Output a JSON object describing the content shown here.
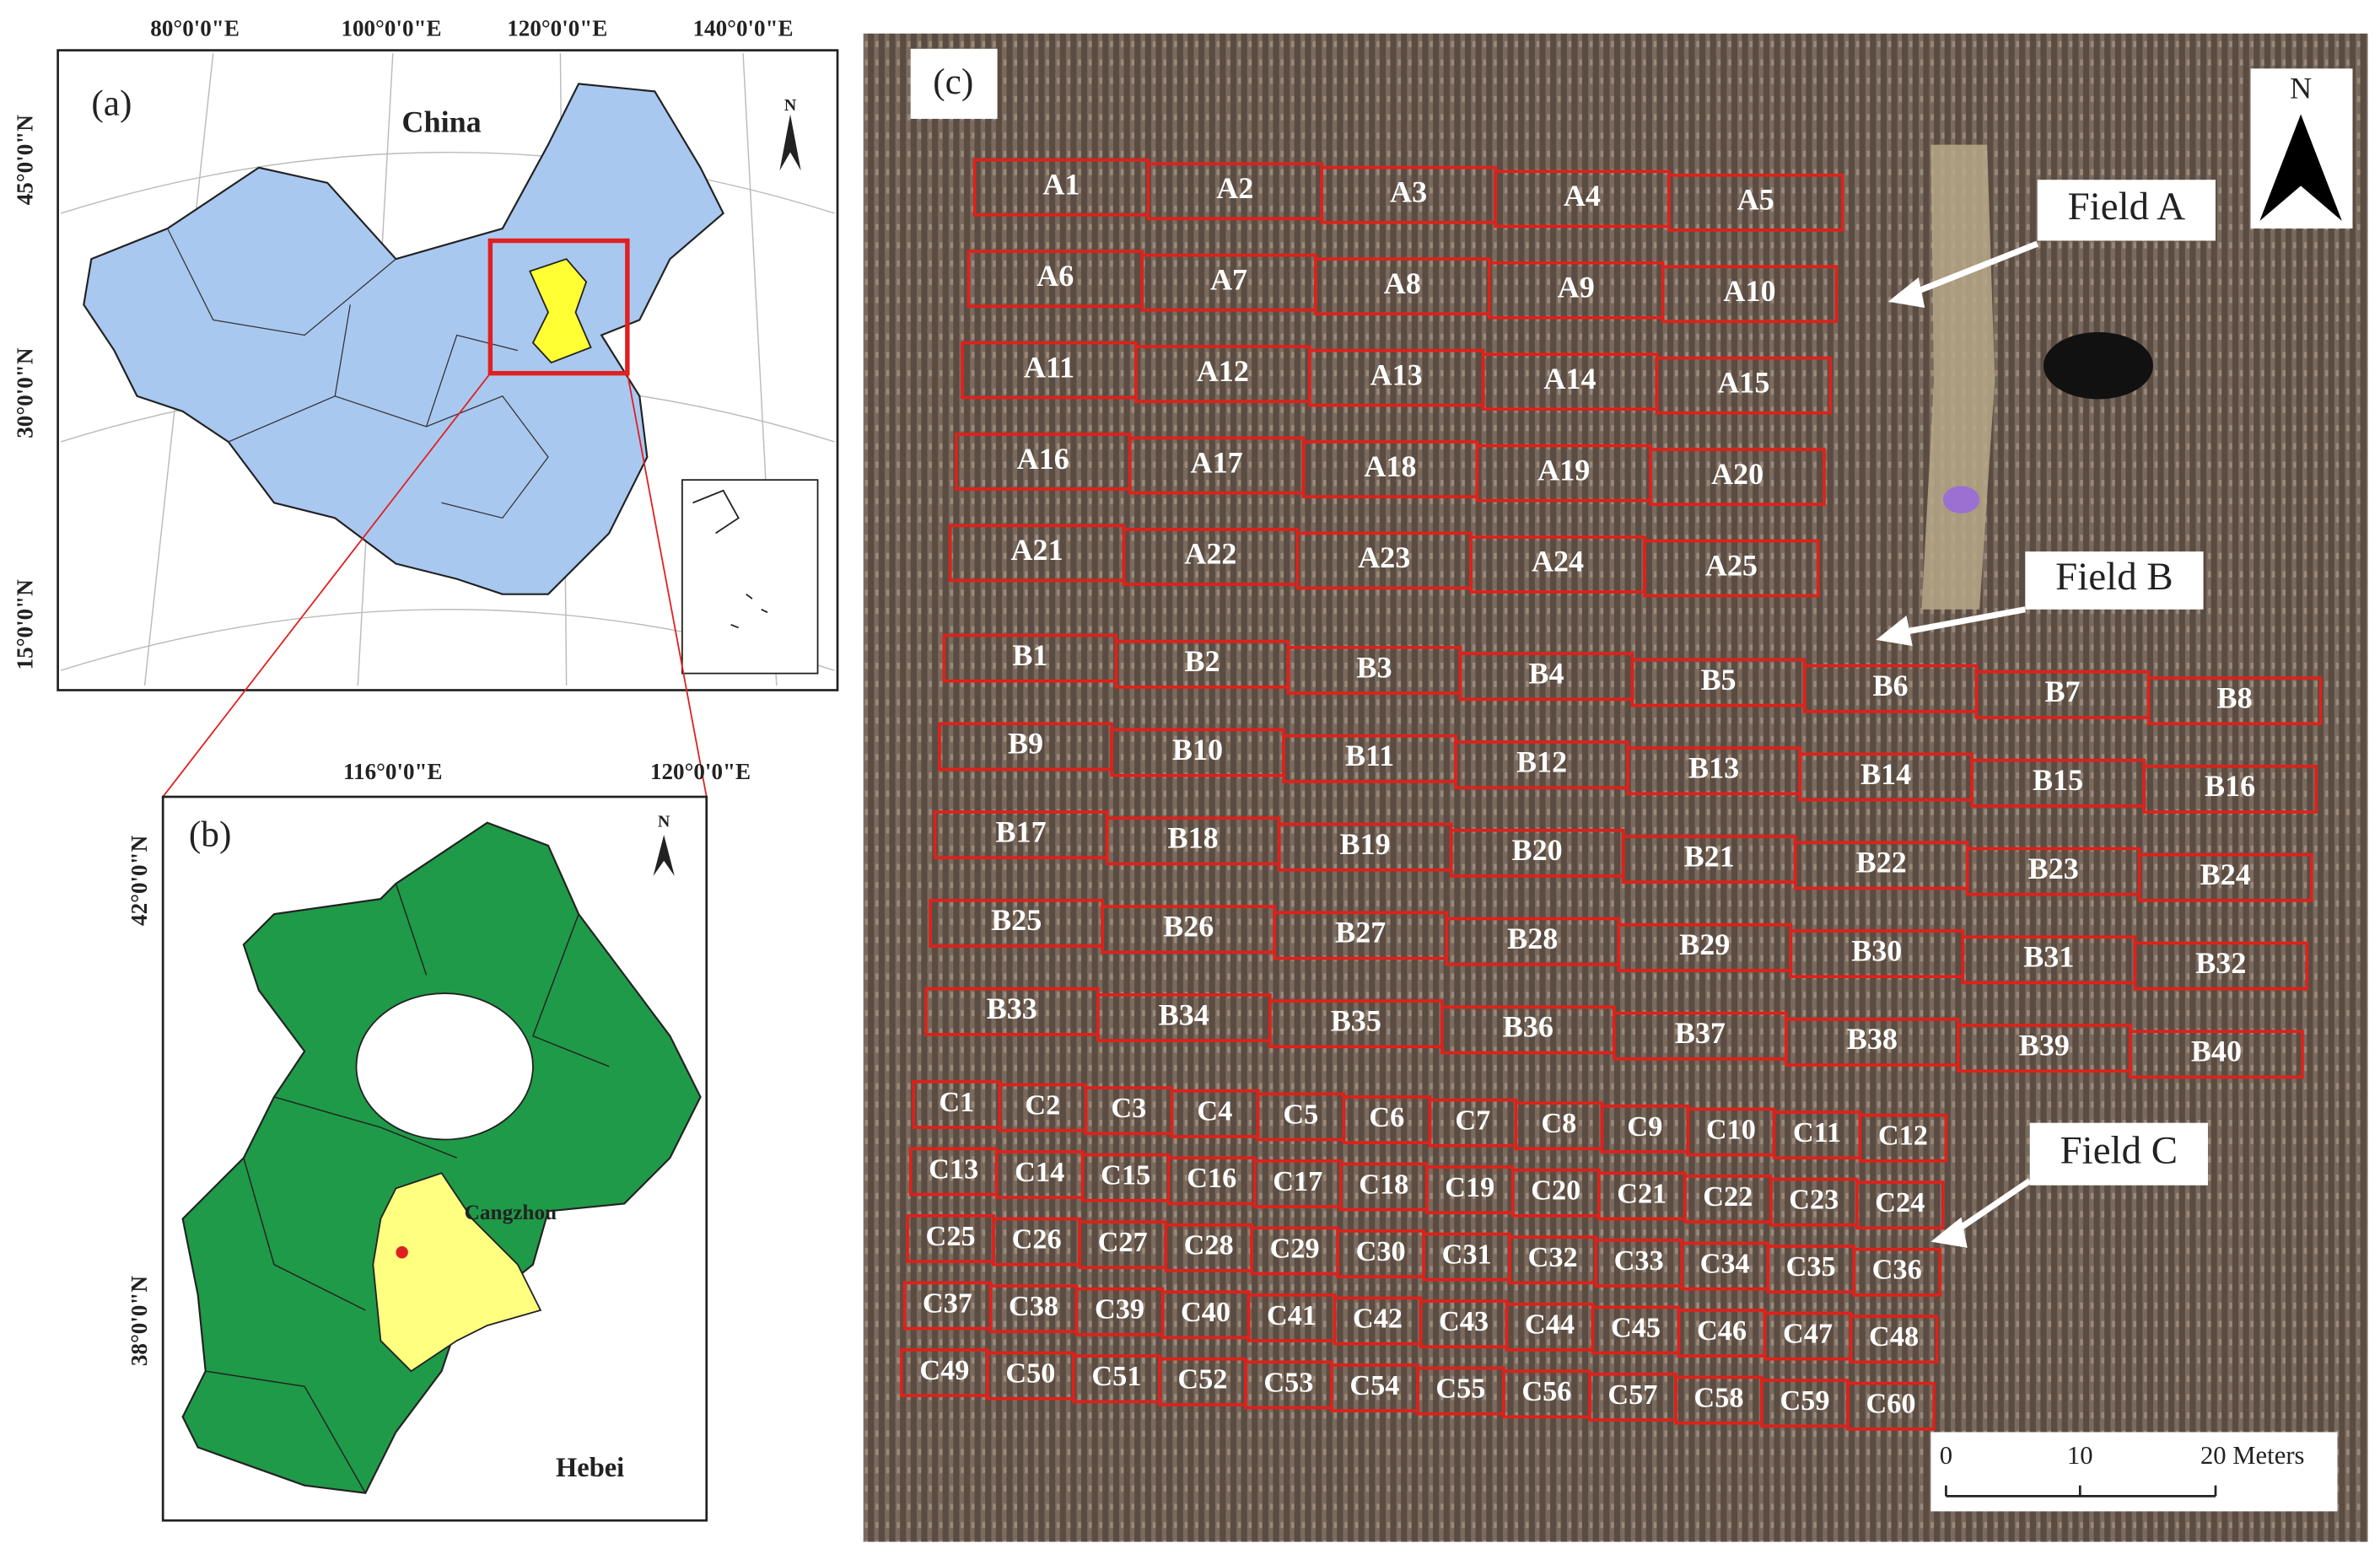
{
  "panel_a": {
    "label": "(a)",
    "title": "China",
    "north": "N",
    "top_labels": [
      "80°0'0\"E",
      "100°0'0\"E",
      "120°0'0\"E",
      "140°0'0\"E"
    ],
    "left_labels": [
      "45°0'0\"N",
      "30°0'0\"N",
      "15°0'0\"N"
    ]
  },
  "panel_b": {
    "label": "(b)",
    "north": "N",
    "city": "Cangzhou",
    "province": "Hebei",
    "top_labels": [
      "116°0'0\"E",
      "120°0'0\"E"
    ],
    "left_labels": [
      "42°0'0\"N",
      "38°0'0\"N"
    ]
  },
  "panel_c": {
    "label": "(c)",
    "north": "N",
    "fields": [
      {
        "name": "Field A",
        "rows": [
          [
            "A1",
            "A2",
            "A3",
            "A4",
            "A5"
          ],
          [
            "A6",
            "A7",
            "A8",
            "A9",
            "A10"
          ],
          [
            "A11",
            "A12",
            "A13",
            "A14",
            "A15"
          ],
          [
            "A16",
            "A17",
            "A18",
            "A19",
            "A20"
          ],
          [
            "A21",
            "A22",
            "A23",
            "A24",
            "A25"
          ]
        ]
      },
      {
        "name": "Field B",
        "rows": [
          [
            "B1",
            "B2",
            "B3",
            "B4",
            "B5",
            "B6",
            "B7",
            "B8"
          ],
          [
            "B9",
            "B10",
            "B11",
            "B12",
            "B13",
            "B14",
            "B15",
            "B16"
          ],
          [
            "B17",
            "B18",
            "B19",
            "B20",
            "B21",
            "B22",
            "B23",
            "B24"
          ],
          [
            "B25",
            "B26",
            "B27",
            "B28",
            "B29",
            "B30",
            "B31",
            "B32"
          ],
          [
            "B33",
            "B34",
            "B35",
            "B36",
            "B37",
            "B38",
            "B39",
            "B40"
          ]
        ]
      },
      {
        "name": "Field C",
        "rows": [
          [
            "C1",
            "C2",
            "C3",
            "C4",
            "C5",
            "C6",
            "C7",
            "C8",
            "C9",
            "C10",
            "C11",
            "C12"
          ],
          [
            "C13",
            "C14",
            "C15",
            "C16",
            "C17",
            "C18",
            "C19",
            "C20",
            "C21",
            "C22",
            "C23",
            "C24"
          ],
          [
            "C25",
            "C26",
            "C27",
            "C28",
            "C29",
            "C30",
            "C31",
            "C32",
            "C33",
            "C34",
            "C35",
            "C36"
          ],
          [
            "C37",
            "C38",
            "C39",
            "C40",
            "C41",
            "C42",
            "C43",
            "C44",
            "C45",
            "C46",
            "C47",
            "C48"
          ],
          [
            "C49",
            "C50",
            "C51",
            "C52",
            "C53",
            "C54",
            "C55",
            "C56",
            "C57",
            "C58",
            "C59",
            "C60"
          ]
        ]
      }
    ],
    "scale_bar": [
      "0",
      "10",
      "20 Meters"
    ]
  }
}
